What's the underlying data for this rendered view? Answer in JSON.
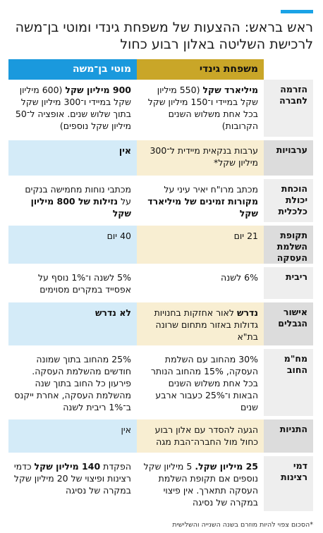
{
  "title": "ראש בראש: ההצעות של משפחת גינדי ומוטי בן־משה לרכישת השליטה באלון רבוע כחול",
  "columns": {
    "gindi": "משפחת גינדי",
    "moti": "מוטי בן־משה"
  },
  "rows": [
    {
      "label": "הזרמה לחברה",
      "gindi_bold": "מיליארד שקל",
      "gindi_text": " (550 מיליון שקל במיידי ו־150 מיליון שקל בכל אחת משלוש השנים הקרובות)",
      "moti_bold": "900 מיליון שקל",
      "moti_text": " (600 מיליון שקל במיידי ו־300 מיליון שקל בתוך שלוש שנים. אופציה ל־50 מיליון שקל נוספים)"
    },
    {
      "label": "ערבויות",
      "gindi_text": "ערבות בנקאית מיידית ל־300 מיליון שקל*",
      "moti_bold": "אין"
    },
    {
      "label": "הוכחת יכולת כלכלית",
      "gindi_pre": "מכתב מרו\"ח יאיר עיני על ",
      "gindi_bold": "מקורות זמינים של מיליארד שקל",
      "moti_pre": "מכתבי נוחות מחמישה בנקים על ",
      "moti_bold": "נזילות של 800 מיליון שקל"
    },
    {
      "label": "תקופת השלמת העסקה",
      "gindi_text": "21 יום",
      "moti_text": "40 יום"
    },
    {
      "label": "ריבית",
      "gindi_text": "6% לשנה",
      "moti_text": "5% לשנה ו־1% נוסף על אפסייד במקרים מסוימים"
    },
    {
      "label": "אישור הגבלים",
      "gindi_bold": "נדרש",
      "gindi_text": " לאור אחזקות בחנויות גדולות באזור מתחום שרונה בת\"א",
      "moti_bold": "לא נדרש"
    },
    {
      "label": "מח\"מ החוב",
      "gindi_text": "30% מהחוב עם השלמת העסקה, 15% מהחוב הנותר בכל אחת משלוש השנים הבאות ו־25% כעבור ארבע שנים",
      "moti_text": "25% מהחוב בתוך שמונה חודשים מהשלמת העסקה. פירעון כל החוב בתוך שנה מהשלמת העסקה, אחרת ייקנס ב־1% ריבית לשנה"
    },
    {
      "label": "התניות",
      "gindi_text": "הגעה להסדר עם אלון רבוע כחול מול החברה־הבת מגה",
      "moti_text": "אין"
    },
    {
      "label": "דמי רצינות",
      "gindi_bold": "25 מיליון שקל.",
      "gindi_text": " 5 מיליון שקל נוספים אם תקופת השלמת העסקה תתארך. אין פיצוי במקרה של נסיגה",
      "moti_pre": "הפקדת ",
      "moti_bold": "140 מיליון שקל",
      "moti_text": " כדמי רצינות ופיצוי של 20 מיליון שקל במקרה של נסיגה"
    }
  ],
  "footnote": "*הסכום צפוי להיות מוזרם בשנה השנייה והשלישית",
  "colors": {
    "accent": "#1aa3e6",
    "gindi_header": "#c9a628",
    "moti_header": "#1a99dd",
    "gindi_shade": "#f8eed2",
    "moti_shade": "#d4ebf8"
  }
}
